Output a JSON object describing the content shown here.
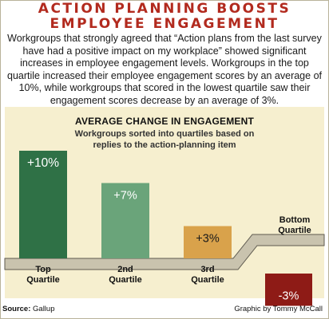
{
  "headline": {
    "line1": "ACTION PLANNING BOOSTS",
    "line2": "EMPLOYEE ENGAGEMENT"
  },
  "intro": "Workgroups that strongly agreed that “Action plans from the last survey have had a positive impact on my workplace” showed significant increases in employee engagement levels. Workgroups in the top quartile increased their employee engagement scores by an average of 10%, while workgroups that scored in the lowest quartile saw their engagement scores decrease by an average of 3%.",
  "chart_data": {
    "type": "bar",
    "title": "AVERAGE CHANGE IN ENGAGEMENT",
    "subtitle": "Workgroups sorted into quartiles based on replies to the action-planning item",
    "unit": "%",
    "categories": [
      {
        "line1": "Top",
        "line2": "Quartile"
      },
      {
        "line1": "2nd",
        "line2": "Quartile"
      },
      {
        "line1": "3rd",
        "line2": "Quartile"
      },
      {
        "line1": "Bottom",
        "line2": "Quartile"
      }
    ],
    "values": [
      10,
      7,
      3,
      -3
    ],
    "labels": [
      "+10%",
      "+7%",
      "+3%",
      "-3%"
    ],
    "colors": [
      "#2f7146",
      "#6aa47a",
      "#d9a24b",
      "#8e1b16"
    ],
    "baseline_color": "#c9c3ae",
    "baseline_edge_color": "#5e5a4f"
  },
  "footer": {
    "source_label": "Source:",
    "source_value": "Gallup",
    "credit": "Graphic by Tommy McCall"
  }
}
